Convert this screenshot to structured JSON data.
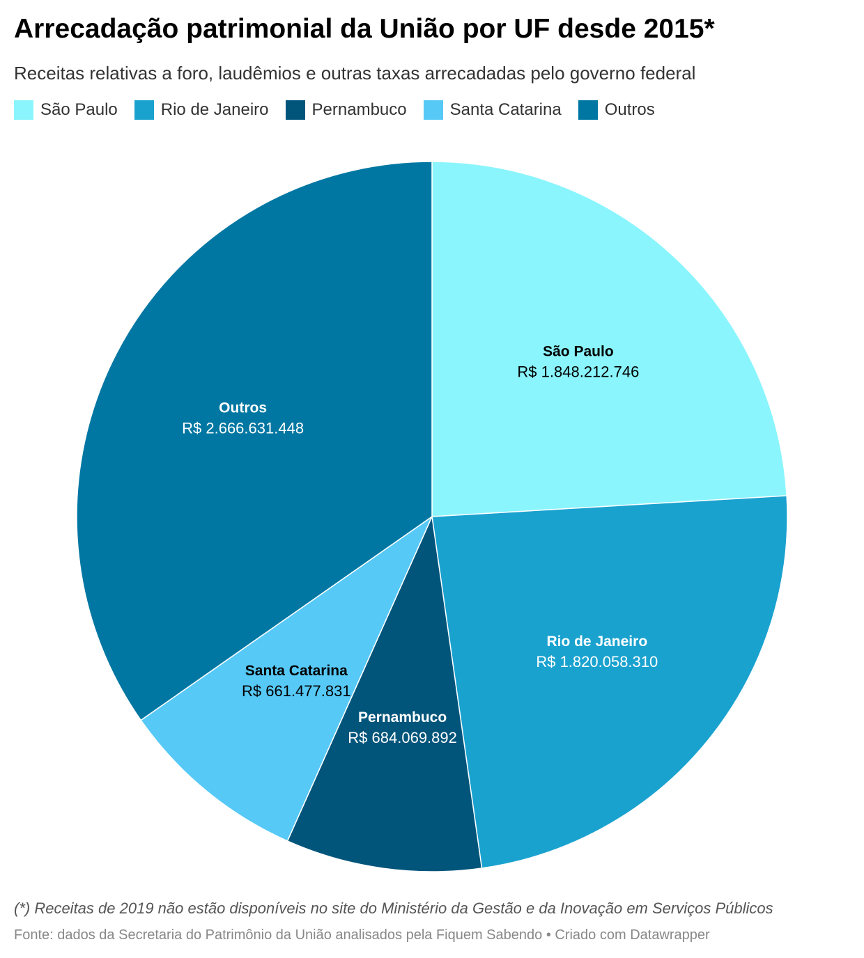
{
  "title": "Arrecadação patrimonial da União por UF desde 2015*",
  "subtitle": "Receitas relativas a foro, laudêmios e outras taxas arrecadadas pelo governo federal",
  "note": "(*) Receitas de 2019 não estão disponíveis no site do Ministério da Gestão e da Inovação em Serviços Públicos",
  "source": "Fonte: dados da Secretaria do Patrimônio da União analisados pela Fiquem Sabendo • Criado com Datawrapper",
  "chart_data": {
    "type": "pie",
    "title": "Arrecadação patrimonial da União por UF desde 2015*",
    "legend_placement": "top-left",
    "slices": [
      {
        "name": "São Paulo",
        "value": 1848212746,
        "label": "R$ 1.848.212.746",
        "color": "#8af5fc",
        "label_color": "#000000"
      },
      {
        "name": "Rio de Janeiro",
        "value": 1820058310,
        "label": "R$ 1.820.058.310",
        "color": "#1aa2cf",
        "label_color": "#ffffff"
      },
      {
        "name": "Pernambuco",
        "value": 684069892,
        "label": "R$ 684.069.892",
        "color": "#01557b",
        "label_color": "#ffffff"
      },
      {
        "name": "Santa Catarina",
        "value": 661477831,
        "label": "R$ 661.477.831",
        "color": "#57c9f7",
        "label_color": "#000000"
      },
      {
        "name": "Outros",
        "value": 2666631448,
        "label": "R$ 2.666.631.448",
        "color": "#0077a2",
        "label_color": "#ffffff"
      }
    ]
  }
}
